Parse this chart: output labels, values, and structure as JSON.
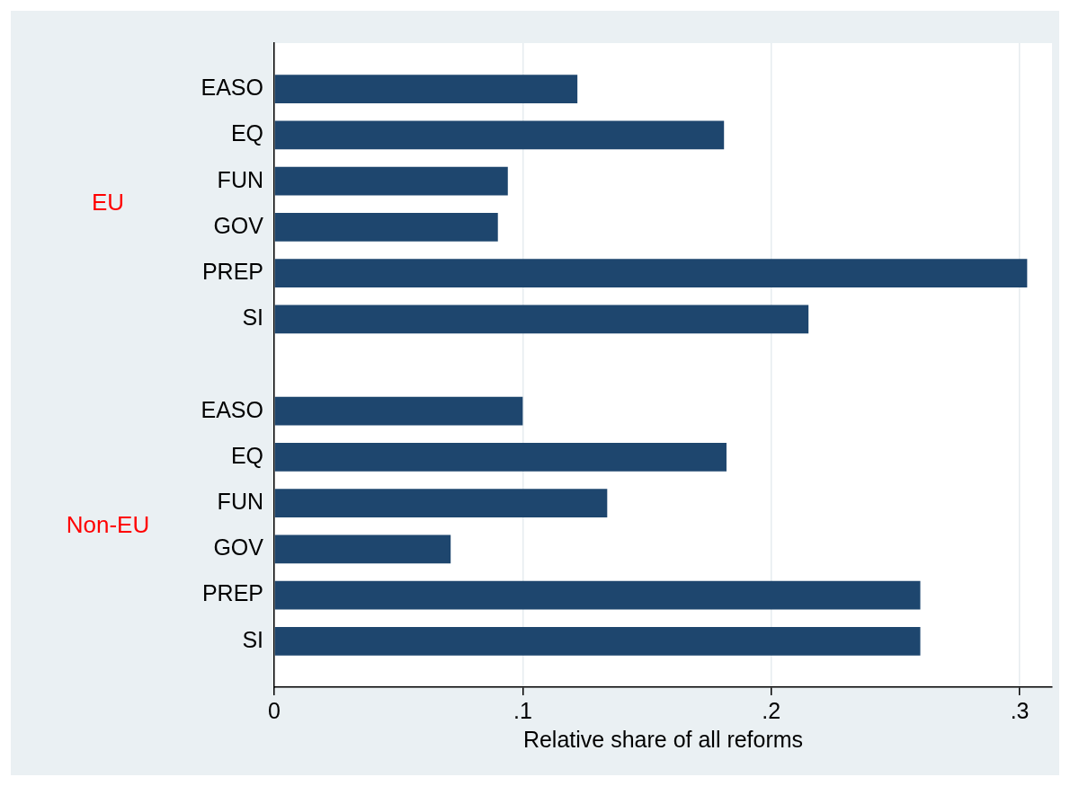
{
  "chart_data": {
    "type": "bar",
    "orientation": "horizontal",
    "xlabel": "Relative share of all reforms",
    "categories": [
      null,
      "EASO",
      "EQ",
      "FUN",
      "GOV",
      "PREP",
      "SI",
      null,
      "EASO",
      "EQ",
      "FUN",
      "GOV",
      "PREP",
      "SI",
      null
    ],
    "values": [
      null,
      0.122,
      0.181,
      0.094,
      0.09,
      0.303,
      0.215,
      null,
      0.1,
      0.182,
      0.134,
      0.071,
      0.26,
      0.26,
      null
    ],
    "color": "#1e466e",
    "annotations": [
      "EU",
      "Non-EU"
    ],
    "xlim": [
      0,
      0.313
    ],
    "xticks": [
      {
        "value": 0,
        "label": "0"
      },
      {
        "value": 0.1,
        "label": ".1"
      },
      {
        "value": 0.2,
        "label": ".2"
      },
      {
        "value": 0.3,
        "label": ".3"
      }
    ],
    "grid": "x",
    "legend": false
  }
}
